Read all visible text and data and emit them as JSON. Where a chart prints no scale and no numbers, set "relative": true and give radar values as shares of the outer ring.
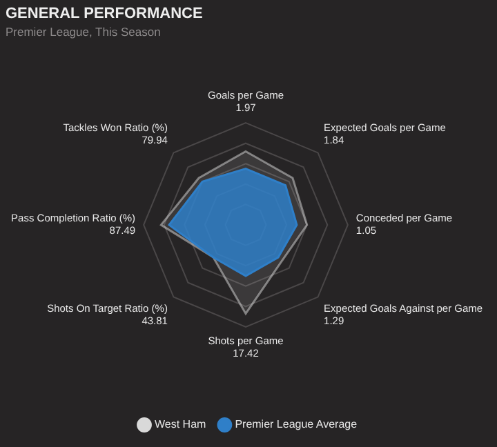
{
  "chart_data": {
    "type": "radar",
    "title": "GENERAL PERFORMANCE",
    "subtitle": "Premier League, This Season",
    "relative": true,
    "grid": true,
    "legend": "bottom",
    "categories": [
      "Goals per Game\n1.97",
      "Expected Goals per Game\n1.84",
      "Conceded per Game\n1.05",
      "Expected Goals Against per Game\n1.29",
      "Shots per Game\n17.42",
      "Shots On Target Ratio (%)\n43.81",
      "Pass Completion Ratio (%)\n87.49",
      "Tackles Won Ratio (%)\n79.94"
    ],
    "series": [
      {
        "name": "West Ham",
        "color": "#d9d9d9",
        "values": [
          0.72,
          0.65,
          0.6,
          0.5,
          0.87,
          0.45,
          0.83,
          0.65
        ]
      },
      {
        "name": "Premier League Average",
        "color": "#2f7fc8",
        "values": [
          0.55,
          0.55,
          0.5,
          0.45,
          0.5,
          0.45,
          0.75,
          0.6
        ]
      }
    ]
  }
}
